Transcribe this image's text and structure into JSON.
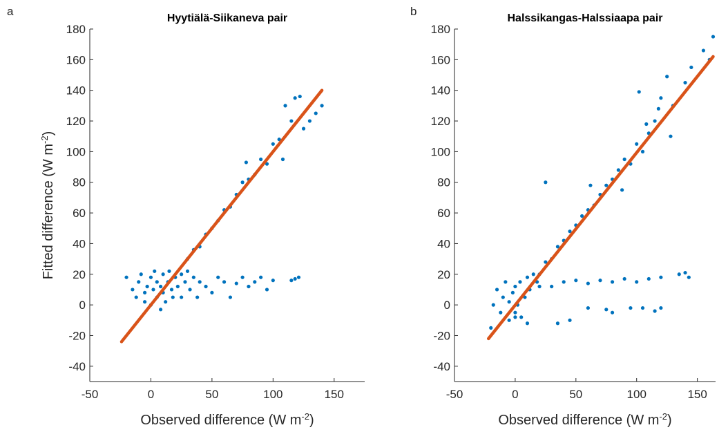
{
  "chart_data": [
    {
      "type": "scatter",
      "panel_label": "a",
      "title": "Hyytiälä-Siikaneva pair",
      "xlabel": [
        "Observed difference (W m",
        "-2",
        ")"
      ],
      "ylabel": [
        "Fitted difference (W m",
        "-2",
        ")"
      ],
      "color": "#0072bd",
      "x": [
        -20,
        -15,
        -12,
        -10,
        -8,
        -5,
        -5,
        -3,
        0,
        0,
        2,
        3,
        5,
        5,
        8,
        8,
        10,
        10,
        12,
        14,
        15,
        17,
        18,
        20,
        22,
        25,
        25,
        28,
        30,
        32,
        35,
        38,
        40,
        45,
        50,
        55,
        60,
        65,
        70,
        75,
        80,
        85,
        90,
        95,
        100,
        115,
        118,
        121,
        30,
        35,
        40,
        45,
        50,
        55,
        60,
        65,
        70,
        75,
        78,
        80,
        85,
        90,
        95,
        100,
        105,
        108,
        110,
        115,
        118,
        122,
        125,
        130,
        135,
        140
      ],
      "y": [
        18,
        10,
        5,
        15,
        20,
        8,
        2,
        12,
        0,
        18,
        10,
        22,
        5,
        15,
        12,
        -3,
        20,
        8,
        2,
        15,
        22,
        10,
        5,
        18,
        12,
        20,
        5,
        15,
        22,
        10,
        18,
        5,
        15,
        12,
        8,
        18,
        15,
        5,
        14,
        18,
        12,
        15,
        18,
        10,
        16,
        16,
        17,
        18,
        30,
        36,
        38,
        46,
        50,
        55,
        62,
        64,
        72,
        80,
        93,
        82,
        85,
        95,
        92,
        105,
        108,
        95,
        130,
        120,
        135,
        136,
        115,
        120,
        125,
        130
      ],
      "fit": {
        "color": "#d95319",
        "x": [
          -24,
          140
        ],
        "y": [
          -24,
          140
        ]
      },
      "xlim": [
        -50,
        175
      ],
      "ylim": [
        -50,
        180
      ],
      "xticks": [
        -50,
        0,
        50,
        100,
        150
      ],
      "yticks": [
        -40,
        -20,
        0,
        20,
        40,
        60,
        80,
        100,
        120,
        140,
        160,
        180
      ]
    },
    {
      "type": "scatter",
      "panel_label": "b",
      "title": "Halssikangas-Halssiaapa pair",
      "xlabel": [
        "Observed difference (W m",
        "-2",
        ")"
      ],
      "color": "#0072bd",
      "x": [
        -20,
        -18,
        -15,
        -12,
        -10,
        -8,
        -5,
        -5,
        -2,
        0,
        0,
        2,
        4,
        5,
        8,
        10,
        12,
        15,
        18,
        20,
        25,
        20,
        25,
        30,
        35,
        40,
        45,
        50,
        55,
        60,
        62,
        65,
        70,
        75,
        80,
        85,
        88,
        90,
        95,
        100,
        102,
        105,
        108,
        110,
        115,
        118,
        120,
        125,
        128,
        130,
        140,
        145,
        155,
        160,
        163,
        30,
        40,
        50,
        60,
        70,
        80,
        90,
        100,
        110,
        120,
        135,
        140,
        143,
        35,
        45,
        60,
        75,
        80,
        95,
        105,
        115,
        120,
        10,
        0
      ],
      "y": [
        -15,
        0,
        10,
        -5,
        5,
        15,
        -10,
        2,
        8,
        -5,
        12,
        0,
        15,
        -8,
        5,
        18,
        10,
        20,
        15,
        12,
        80,
        20,
        28,
        30,
        38,
        42,
        48,
        52,
        58,
        62,
        78,
        65,
        72,
        78,
        82,
        88,
        75,
        95,
        92,
        105,
        139,
        100,
        118,
        112,
        120,
        128,
        135,
        149,
        110,
        130,
        145,
        155,
        166,
        160,
        175,
        12,
        15,
        16,
        14,
        16,
        15,
        17,
        15,
        17,
        18,
        20,
        21,
        18,
        -12,
        -10,
        -2,
        -3,
        -5,
        -2,
        -2,
        -4,
        -2,
        -12,
        -8
      ],
      "fit": {
        "color": "#d95319",
        "x": [
          -22,
          163
        ],
        "y": [
          -22,
          162
        ]
      },
      "xlim": [
        -50,
        165
      ],
      "ylim": [
        -50,
        180
      ],
      "xticks": [
        -50,
        0,
        50,
        100,
        150
      ],
      "yticks": [
        -40,
        -20,
        0,
        20,
        40,
        60,
        80,
        100,
        120,
        140,
        160,
        180
      ]
    }
  ]
}
